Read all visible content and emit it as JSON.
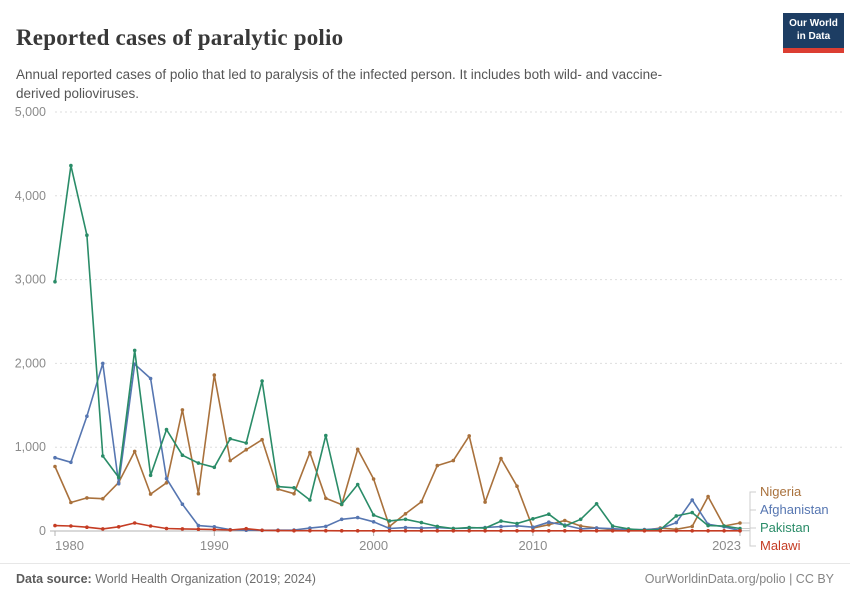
{
  "header": {
    "title": "Reported cases of paralytic polio",
    "subtitle": "Annual reported cases of polio that led to paralysis of the infected person. It includes both wild- and vaccine-derived polioviruses.",
    "logo": {
      "line1": "Our World",
      "line2": "in Data"
    }
  },
  "chart_data": {
    "type": "line",
    "title": "Reported cases of paralytic polio",
    "xlabel": "",
    "ylabel": "",
    "ylim": [
      0,
      5000
    ],
    "yticks": [
      0,
      1000,
      2000,
      3000,
      4000,
      5000
    ],
    "ytick_labels": [
      "0",
      "1,000",
      "2,000",
      "3,000",
      "4,000",
      "5,000"
    ],
    "xticks": [
      1980,
      1990,
      2000,
      2010,
      2023
    ],
    "xtick_labels": [
      "1980",
      "1990",
      "2000",
      "2010",
      "2023"
    ],
    "grid": "horizontal-dashed",
    "legend_position": "right",
    "x": [
      1980,
      1981,
      1982,
      1983,
      1984,
      1985,
      1986,
      1987,
      1988,
      1989,
      1990,
      1991,
      1992,
      1993,
      1994,
      1995,
      1996,
      1997,
      1998,
      1999,
      2000,
      2001,
      2002,
      2003,
      2004,
      2005,
      2006,
      2007,
      2008,
      2009,
      2010,
      2011,
      2012,
      2013,
      2014,
      2015,
      2016,
      2017,
      2018,
      2019,
      2020,
      2021,
      2022,
      2023
    ],
    "series": [
      {
        "name": "Nigeria",
        "color": "#A9713C",
        "values": [
          770,
          340,
          395,
          385,
          580,
          950,
          440,
          575,
          1445,
          445,
          1860,
          840,
          970,
          1090,
          500,
          445,
          935,
          390,
          315,
          975,
          620,
          55,
          205,
          350,
          780,
          840,
          1135,
          345,
          865,
          535,
          35,
          75,
          125,
          60,
          35,
          15,
          10,
          8,
          35,
          20,
          55,
          410,
          60,
          95
        ]
      },
      {
        "name": "Afghanistan",
        "color": "#5676B1",
        "values": [
          875,
          820,
          1370,
          2000,
          565,
          1990,
          1820,
          625,
          320,
          65,
          50,
          15,
          10,
          8,
          10,
          12,
          35,
          55,
          140,
          160,
          110,
          30,
          40,
          35,
          40,
          30,
          35,
          42,
          52,
          62,
          45,
          105,
          70,
          25,
          35,
          28,
          18,
          18,
          28,
          100,
          370,
          80,
          50,
          5
        ]
      },
      {
        "name": "Pakistan",
        "color": "#2A8C68",
        "values": [
          2975,
          4360,
          3530,
          895,
          640,
          2155,
          665,
          1210,
          905,
          810,
          760,
          1100,
          1050,
          1790,
          530,
          515,
          370,
          1140,
          320,
          555,
          190,
          120,
          140,
          100,
          55,
          30,
          40,
          35,
          118,
          90,
          145,
          200,
          60,
          140,
          325,
          60,
          25,
          10,
          15,
          180,
          220,
          65,
          60,
          30
        ]
      },
      {
        "name": "Malawi",
        "color": "#C53C23",
        "values": [
          65,
          60,
          45,
          25,
          50,
          95,
          60,
          30,
          25,
          22,
          18,
          12,
          28,
          8,
          5,
          4,
          3,
          3,
          2,
          2,
          2,
          2,
          2,
          2,
          2,
          2,
          2,
          2,
          2,
          2,
          2,
          2,
          2,
          2,
          2,
          2,
          2,
          2,
          2,
          2,
          2,
          2,
          2,
          2
        ]
      }
    ]
  },
  "footer": {
    "source_label": "Data source:",
    "source_value": " World Health Organization (2019; 2024)",
    "attribution": "OurWorldinData.org/polio | CC BY"
  }
}
